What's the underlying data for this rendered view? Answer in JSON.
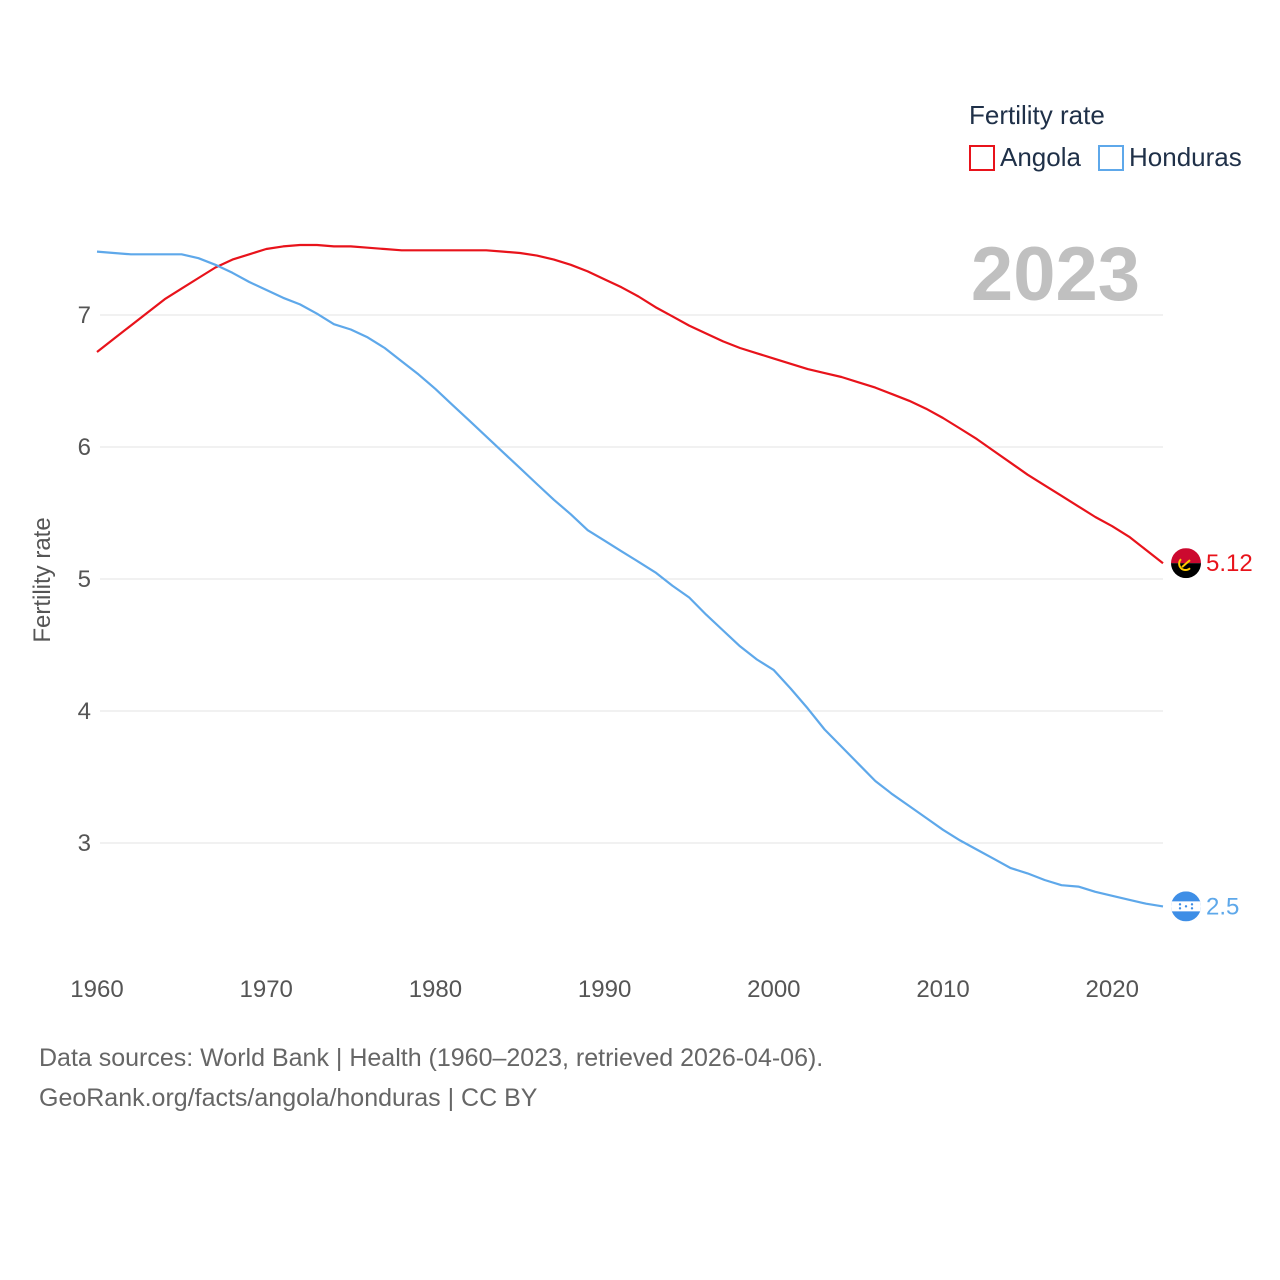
{
  "chart_data": {
    "type": "line",
    "title": "Fertility rate",
    "ylabel": "Fertility rate",
    "xlabel": "",
    "year_label": "2023",
    "xlim": [
      1960,
      2023
    ],
    "ylim": [
      2.2,
      7.8
    ],
    "x_ticks": [
      1960,
      1970,
      1980,
      1990,
      2000,
      2010,
      2020
    ],
    "y_ticks": [
      3,
      4,
      5,
      6,
      7
    ],
    "grid": true,
    "legend_position": "top-right",
    "x": [
      1960,
      1961,
      1962,
      1963,
      1964,
      1965,
      1966,
      1967,
      1968,
      1969,
      1970,
      1971,
      1972,
      1973,
      1974,
      1975,
      1976,
      1977,
      1978,
      1979,
      1980,
      1981,
      1982,
      1983,
      1984,
      1985,
      1986,
      1987,
      1988,
      1989,
      1990,
      1991,
      1992,
      1993,
      1994,
      1995,
      1996,
      1997,
      1998,
      1999,
      2000,
      2001,
      2002,
      2003,
      2004,
      2005,
      2006,
      2007,
      2008,
      2009,
      2010,
      2011,
      2012,
      2013,
      2014,
      2015,
      2016,
      2017,
      2018,
      2019,
      2020,
      2021,
      2022,
      2023
    ],
    "series": [
      {
        "name": "Angola",
        "color": "#e8131b",
        "end_label": "5.12",
        "flag": "angola-flag-icon",
        "values": [
          6.72,
          6.82,
          6.92,
          7.02,
          7.12,
          7.2,
          7.28,
          7.36,
          7.42,
          7.46,
          7.5,
          7.52,
          7.53,
          7.53,
          7.52,
          7.52,
          7.51,
          7.5,
          7.49,
          7.49,
          7.49,
          7.49,
          7.49,
          7.49,
          7.48,
          7.47,
          7.45,
          7.42,
          7.38,
          7.33,
          7.27,
          7.21,
          7.14,
          7.06,
          6.99,
          6.92,
          6.86,
          6.8,
          6.75,
          6.71,
          6.67,
          6.63,
          6.59,
          6.56,
          6.53,
          6.49,
          6.45,
          6.4,
          6.35,
          6.29,
          6.22,
          6.14,
          6.06,
          5.97,
          5.88,
          5.79,
          5.71,
          5.63,
          5.55,
          5.47,
          5.4,
          5.32,
          5.22,
          5.12
        ]
      },
      {
        "name": "Honduras",
        "color": "#5ea8ea",
        "end_label": "2.5",
        "flag": "honduras-flag-icon",
        "values": [
          7.48,
          7.47,
          7.46,
          7.46,
          7.46,
          7.46,
          7.43,
          7.38,
          7.32,
          7.25,
          7.19,
          7.13,
          7.08,
          7.01,
          6.93,
          6.89,
          6.83,
          6.75,
          6.65,
          6.55,
          6.44,
          6.32,
          6.2,
          6.08,
          5.96,
          5.84,
          5.72,
          5.6,
          5.49,
          5.37,
          5.29,
          5.21,
          5.13,
          5.05,
          4.95,
          4.86,
          4.73,
          4.61,
          4.49,
          4.39,
          4.31,
          4.17,
          4.02,
          3.86,
          3.73,
          3.6,
          3.47,
          3.37,
          3.28,
          3.19,
          3.1,
          3.02,
          2.95,
          2.88,
          2.81,
          2.77,
          2.72,
          2.68,
          2.67,
          2.63,
          2.6,
          2.57,
          2.54,
          2.52
        ]
      }
    ]
  },
  "footer": {
    "line1": "Data sources: World Bank | Health (1960–2023, retrieved 2026-04-06).",
    "line2": "GeoRank.org/facts/angola/honduras | CC BY"
  }
}
